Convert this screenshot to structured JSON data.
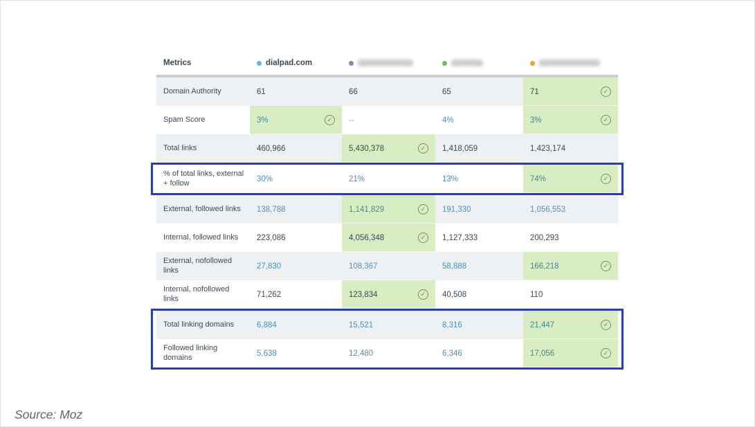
{
  "source_note": "Source: Moz",
  "colors": {
    "highlight_green": "#d9edc3",
    "outline_blue": "#2b3cae",
    "link_blue": "#4a90c4",
    "teal_on_green": "#3e8b96",
    "dark_text": "#3e4852",
    "stripe_gray": "#edf1f3",
    "check_icon": "#7f8c66"
  },
  "table": {
    "metrics_header": "Metrics",
    "competitors": [
      {
        "name": "dialpad.com",
        "dot_color": "#5cb8e8",
        "dot_icon": "legend-dot-blue",
        "blurred": false,
        "blur_width": 0
      },
      {
        "name": "",
        "dot_color": "#8a84d8",
        "dot_icon": "legend-dot-purple",
        "blurred": true,
        "blur_width": 80
      },
      {
        "name": "",
        "dot_color": "#67c14b",
        "dot_icon": "legend-dot-green",
        "blurred": true,
        "blur_width": 46
      },
      {
        "name": "",
        "dot_color": "#f4a13d",
        "dot_icon": "legend-dot-orange",
        "blurred": true,
        "blur_width": 88
      }
    ],
    "rows": [
      {
        "metric": "Domain Authority",
        "striped": true,
        "outline_group": null,
        "cells": [
          {
            "text": "61",
            "color": "dark",
            "highlight": false,
            "check": false
          },
          {
            "text": "66",
            "color": "dark",
            "highlight": false,
            "check": false
          },
          {
            "text": "65",
            "color": "dark",
            "highlight": false,
            "check": false
          },
          {
            "text": "71",
            "color": "dark",
            "highlight": true,
            "check": true
          }
        ]
      },
      {
        "metric": "Spam Score",
        "striped": false,
        "outline_group": null,
        "cells": [
          {
            "text": "3%",
            "color": "teal",
            "highlight": true,
            "check": true
          },
          {
            "text": "--",
            "color": "muted",
            "highlight": false,
            "check": false
          },
          {
            "text": "4%",
            "color": "link",
            "highlight": false,
            "check": false
          },
          {
            "text": "3%",
            "color": "teal",
            "highlight": true,
            "check": true
          }
        ]
      },
      {
        "metric": "Total links",
        "striped": true,
        "outline_group": null,
        "cells": [
          {
            "text": "460,966",
            "color": "dark",
            "highlight": false,
            "check": false
          },
          {
            "text": "5,430,378",
            "color": "dark",
            "highlight": true,
            "check": true
          },
          {
            "text": "1,418,059",
            "color": "dark",
            "highlight": false,
            "check": false
          },
          {
            "text": "1,423,174",
            "color": "dark",
            "highlight": false,
            "check": false
          }
        ]
      },
      {
        "metric": "% of total links, external + follow",
        "striped": false,
        "outline_group": "pct-row",
        "cells": [
          {
            "text": "30%",
            "color": "link",
            "highlight": false,
            "check": false
          },
          {
            "text": "21%",
            "color": "link",
            "highlight": false,
            "check": false
          },
          {
            "text": "13%",
            "color": "link",
            "highlight": false,
            "check": false
          },
          {
            "text": "74%",
            "color": "teal",
            "highlight": true,
            "check": true
          }
        ]
      },
      {
        "metric": "External, followed links",
        "striped": true,
        "outline_group": null,
        "cells": [
          {
            "text": "138,788",
            "color": "link",
            "highlight": false,
            "check": false
          },
          {
            "text": "1,141,829",
            "color": "teal",
            "highlight": true,
            "check": true
          },
          {
            "text": "191,330",
            "color": "link",
            "highlight": false,
            "check": false
          },
          {
            "text": "1,056,553",
            "color": "link",
            "highlight": false,
            "check": false
          }
        ]
      },
      {
        "metric": "Internal, followed links",
        "striped": false,
        "outline_group": null,
        "cells": [
          {
            "text": "223,086",
            "color": "dark",
            "highlight": false,
            "check": false
          },
          {
            "text": "4,056,348",
            "color": "dark",
            "highlight": true,
            "check": true
          },
          {
            "text": "1,127,333",
            "color": "dark",
            "highlight": false,
            "check": false
          },
          {
            "text": "200,293",
            "color": "dark",
            "highlight": false,
            "check": false
          }
        ]
      },
      {
        "metric": "External, nofollowed links",
        "striped": true,
        "outline_group": null,
        "cells": [
          {
            "text": "27,830",
            "color": "link",
            "highlight": false,
            "check": false
          },
          {
            "text": "108,367",
            "color": "link",
            "highlight": false,
            "check": false
          },
          {
            "text": "58,888",
            "color": "link",
            "highlight": false,
            "check": false
          },
          {
            "text": "166,218",
            "color": "teal",
            "highlight": true,
            "check": true
          }
        ]
      },
      {
        "metric": "Internal, nofollowed links",
        "striped": false,
        "outline_group": null,
        "cells": [
          {
            "text": "71,262",
            "color": "dark",
            "highlight": false,
            "check": false
          },
          {
            "text": "123,834",
            "color": "dark",
            "highlight": true,
            "check": true
          },
          {
            "text": "40,508",
            "color": "dark",
            "highlight": false,
            "check": false
          },
          {
            "text": "110",
            "color": "dark",
            "highlight": false,
            "check": false
          }
        ]
      },
      {
        "metric": "Total linking domains",
        "striped": true,
        "outline_group": "domains-rows",
        "cells": [
          {
            "text": "6,884",
            "color": "link",
            "highlight": false,
            "check": false
          },
          {
            "text": "15,521",
            "color": "link",
            "highlight": false,
            "check": false
          },
          {
            "text": "8,316",
            "color": "link",
            "highlight": false,
            "check": false
          },
          {
            "text": "21,447",
            "color": "teal",
            "highlight": true,
            "check": true
          }
        ]
      },
      {
        "metric": "Followed linking domains",
        "striped": false,
        "outline_group": "domains-rows",
        "cells": [
          {
            "text": "5,638",
            "color": "link",
            "highlight": false,
            "check": false
          },
          {
            "text": "12,480",
            "color": "link",
            "highlight": false,
            "check": false
          },
          {
            "text": "6,346",
            "color": "link",
            "highlight": false,
            "check": false
          },
          {
            "text": "17,056",
            "color": "teal",
            "highlight": true,
            "check": true
          }
        ]
      }
    ]
  }
}
